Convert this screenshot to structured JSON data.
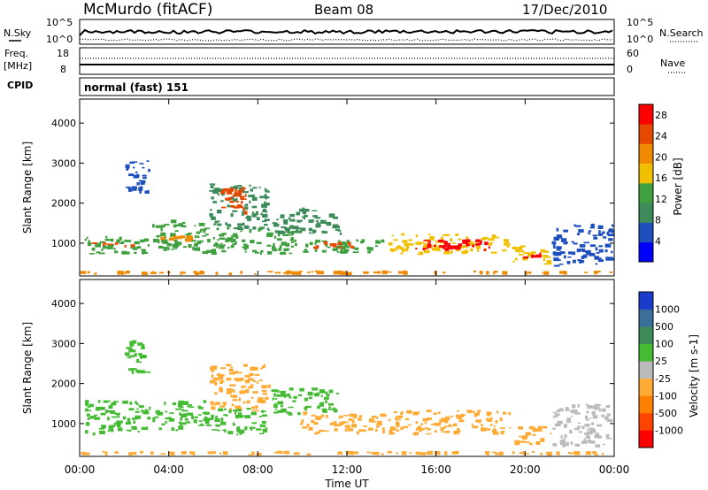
{
  "header": {
    "station": "McMurdo (fitACF)",
    "beam": "Beam 08",
    "date": "17/Dec/2010"
  },
  "summary_panels": {
    "nsky_label": "N.Sky",
    "nsky_ticks": [
      "10^5",
      "10^0"
    ],
    "nsearch_label": "N.Search",
    "nsearch_ticks": [
      "10^5",
      "10^0"
    ],
    "freq_label": "Freq.",
    "freq_unit": "[MHz]",
    "freq_ticks": [
      "18",
      "8"
    ],
    "nave_label": "Nave",
    "nave_ticks": [
      "60",
      "0"
    ],
    "cpid_label": "CPID",
    "cpid_value": "normal (fast) 151"
  },
  "colors": {
    "power_scale": [
      "#0000ff",
      "#1f4fbf",
      "#3d8b5b",
      "#3fa03f",
      "#f0c000",
      "#f08a00",
      "#e64a00",
      "#ff0000"
    ],
    "velocity_scale": [
      "#1a3ccc",
      "#3a6f9a",
      "#3d8b5b",
      "#44bb33",
      "#bbbbbb",
      "#ffaa33",
      "#ff7f00",
      "#ff4400",
      "#ff0000"
    ],
    "ground_scatter": "#808080"
  },
  "chart_data": [
    {
      "type": "heatmap",
      "title": "",
      "xlabel": "Time UT",
      "ylabel": "Slant Range [km]",
      "x_ticks": [
        "00:00",
        "04:00",
        "08:00",
        "12:00",
        "16:00",
        "20:00",
        "00:00"
      ],
      "x_range_hours": [
        0,
        24
      ],
      "y_ticks": [
        "1000",
        "2000",
        "3000",
        "4000"
      ],
      "y_range_km": [
        180,
        4600
      ],
      "colorbar": {
        "label": "Power [dB]",
        "ticks": [
          "4",
          "8",
          "12",
          "16",
          "20",
          "24",
          "28"
        ],
        "range": [
          0,
          30
        ]
      },
      "echo_regions": [
        {
          "t0": 0.0,
          "t1": 24.0,
          "r0": 200,
          "r1": 320,
          "value": 20
        },
        {
          "t0": 0.2,
          "t1": 3.2,
          "r0": 700,
          "r1": 1200,
          "value": 14
        },
        {
          "t0": 0.5,
          "t1": 2.5,
          "r0": 880,
          "r1": 1030,
          "value": 24
        },
        {
          "t0": 2.0,
          "t1": 3.2,
          "r0": 2200,
          "r1": 3100,
          "value": 6
        },
        {
          "t0": 3.2,
          "t1": 5.8,
          "r0": 800,
          "r1": 1600,
          "value": 12
        },
        {
          "t0": 3.5,
          "t1": 5.2,
          "r0": 1000,
          "r1": 1200,
          "value": 20
        },
        {
          "t0": 5.8,
          "t1": 8.6,
          "r0": 1300,
          "r1": 2500,
          "value": 10
        },
        {
          "t0": 6.2,
          "t1": 7.6,
          "r0": 1700,
          "r1": 2400,
          "value": 26
        },
        {
          "t0": 5.5,
          "t1": 9.8,
          "r0": 700,
          "r1": 1400,
          "value": 12
        },
        {
          "t0": 8.6,
          "t1": 11.8,
          "r0": 1200,
          "r1": 1900,
          "value": 8
        },
        {
          "t0": 9.8,
          "t1": 13.8,
          "r0": 720,
          "r1": 1100,
          "value": 14
        },
        {
          "t0": 10.5,
          "t1": 12.5,
          "r0": 850,
          "r1": 1050,
          "value": 26
        },
        {
          "t0": 13.8,
          "t1": 19.4,
          "r0": 700,
          "r1": 1250,
          "value": 16
        },
        {
          "t0": 14.5,
          "t1": 18.5,
          "r0": 780,
          "r1": 1100,
          "value": 28
        },
        {
          "t0": 19.4,
          "t1": 21.2,
          "r0": 450,
          "r1": 950,
          "value": 18
        },
        {
          "t0": 19.8,
          "t1": 20.8,
          "r0": 600,
          "r1": 800,
          "value": 28
        },
        {
          "t0": 21.2,
          "t1": 24.0,
          "r0": 400,
          "r1": 1500,
          "value": 5
        }
      ]
    },
    {
      "type": "heatmap",
      "title": "",
      "xlabel": "Time UT",
      "ylabel": "Slant Range [km]",
      "x_ticks": [
        "00:00",
        "04:00",
        "08:00",
        "12:00",
        "16:00",
        "20:00",
        "00:00"
      ],
      "x_range_hours": [
        0,
        24
      ],
      "y_ticks": [
        "1000",
        "2000",
        "3000",
        "4000"
      ],
      "y_range_km": [
        180,
        4600
      ],
      "colorbar": {
        "label": "Velocity [m s-1]",
        "ticks": [
          "1000",
          "500",
          "100",
          "25",
          "-25",
          "-100",
          "-500",
          "-1000"
        ],
        "range": [
          -1000,
          1000
        ]
      },
      "echo_regions": [
        {
          "t0": 0.0,
          "t1": 24.0,
          "r0": 200,
          "r1": 320,
          "value": -120
        },
        {
          "t0": 0.2,
          "t1": 3.2,
          "r0": 700,
          "r1": 1600,
          "value": 300
        },
        {
          "t0": 2.0,
          "t1": 3.2,
          "r0": 2200,
          "r1": 3100,
          "value": 300
        },
        {
          "t0": 3.2,
          "t1": 5.8,
          "r0": 800,
          "r1": 1600,
          "value": 300
        },
        {
          "t0": 5.8,
          "t1": 8.6,
          "r0": 1300,
          "r1": 2500,
          "value": -300
        },
        {
          "t0": 5.5,
          "t1": 8.5,
          "r0": 700,
          "r1": 1400,
          "value": 300
        },
        {
          "t0": 8.6,
          "t1": 11.8,
          "r0": 1200,
          "r1": 1900,
          "value": 300
        },
        {
          "t0": 9.8,
          "t1": 13.8,
          "r0": 720,
          "r1": 1300,
          "value": -300
        },
        {
          "t0": 13.8,
          "t1": 19.4,
          "r0": 700,
          "r1": 1350,
          "value": -300
        },
        {
          "t0": 19.4,
          "t1": 21.2,
          "r0": 450,
          "r1": 950,
          "value": -300
        },
        {
          "t0": 21.2,
          "t1": 24.0,
          "r0": 400,
          "r1": 1500,
          "value": -60
        }
      ]
    }
  ]
}
